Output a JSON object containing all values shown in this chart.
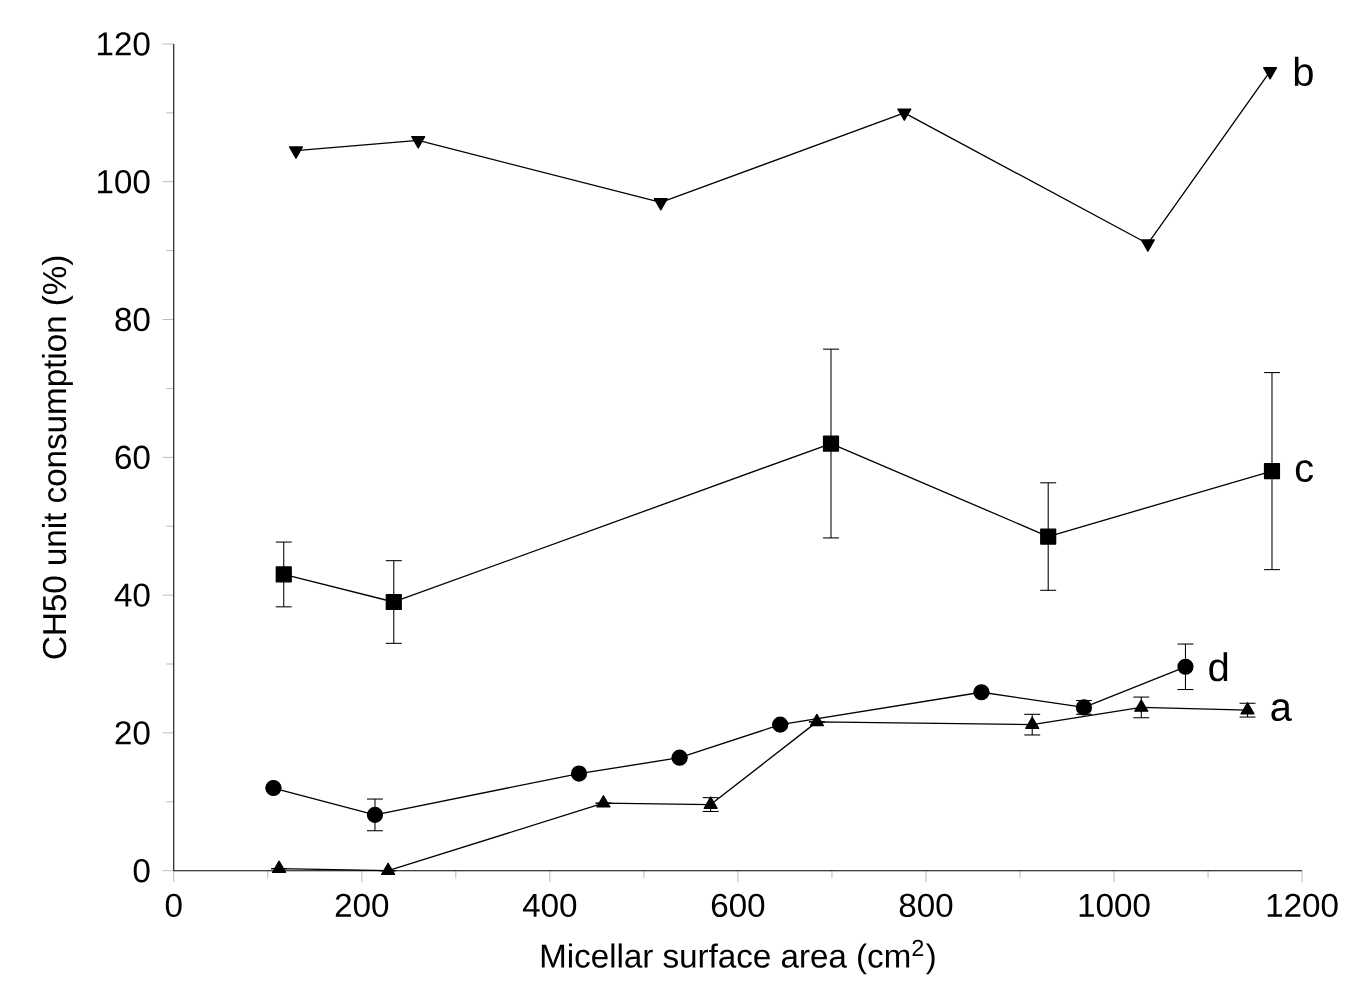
{
  "chart_data": {
    "type": "line",
    "xlabel": "Micellar surface area (cm$^{2}$)",
    "ylabel": "CH50 unit consumption (%)",
    "xlim": [
      0,
      1200
    ],
    "ylim": [
      0,
      120
    ],
    "xticks": [
      0,
      200,
      400,
      600,
      800,
      1000,
      1200
    ],
    "yticks": [
      0,
      20,
      40,
      60,
      80,
      100,
      120
    ],
    "line_style": "solid",
    "series": [
      {
        "name": "b",
        "color": "#000000",
        "marker": "triangle-down",
        "x": [
          130,
          260,
          518,
          777,
          1036,
          1166
        ],
        "values": [
          104.5,
          106,
          97,
          110,
          91,
          116
        ]
      },
      {
        "name": "c",
        "color": "#000000",
        "marker": "square",
        "x": [
          117,
          234,
          699,
          930,
          1168
        ],
        "values": [
          43,
          39,
          62,
          48.5,
          58
        ],
        "errors": [
          4.7,
          6,
          13.7,
          7.8,
          14.3
        ]
      },
      {
        "name": "d",
        "color": "#000000",
        "marker": "circle",
        "x": [
          106,
          214,
          431,
          538,
          645,
          859,
          968,
          1076
        ],
        "values": [
          12,
          8.1,
          14.1,
          16.4,
          21.2,
          25.9,
          23.7,
          29.6
        ],
        "errors": [
          null,
          2.3,
          null,
          null,
          null,
          null,
          1,
          3.3
        ]
      },
      {
        "name": "a",
        "color": "#000000",
        "marker": "triangle",
        "x": [
          112,
          228,
          457,
          571,
          684,
          913,
          1029,
          1142
        ],
        "values": [
          0.3,
          0,
          9.8,
          9.6,
          21.6,
          21.2,
          23.7,
          23.3
        ],
        "errors": [
          null,
          null,
          null,
          1,
          null,
          1.5,
          1.5,
          1
        ]
      }
    ]
  }
}
